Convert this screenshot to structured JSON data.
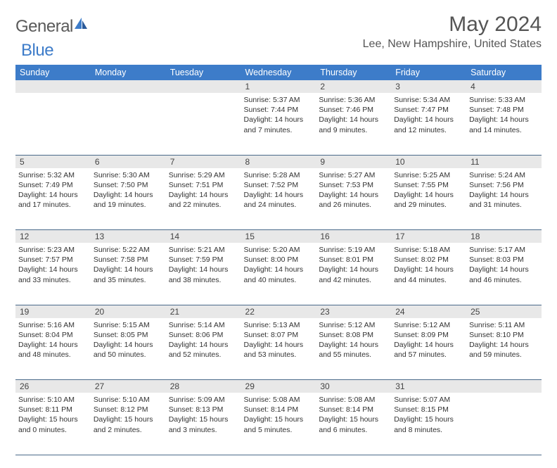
{
  "brand": {
    "part1": "General",
    "part2": "Blue"
  },
  "title": "May 2024",
  "location": "Lee, New Hampshire, United States",
  "colors": {
    "header_bg": "#3d7cc9",
    "header_text": "#ffffff",
    "daynum_bg": "#e8e8e8",
    "text": "#333333",
    "rule": "#4a6a8a",
    "logo_gray": "#5a5a5a",
    "logo_blue": "#3d7cc9"
  },
  "typography": {
    "title_fontsize": 30,
    "location_fontsize": 16,
    "dayheader_fontsize": 12.5,
    "daynum_fontsize": 12,
    "body_fontsize": 10.5
  },
  "day_headers": [
    "Sunday",
    "Monday",
    "Tuesday",
    "Wednesday",
    "Thursday",
    "Friday",
    "Saturday"
  ],
  "weeks": [
    [
      null,
      null,
      null,
      {
        "n": "1",
        "sr": "5:37 AM",
        "ss": "7:44 PM",
        "dl": "14 hours and 7 minutes."
      },
      {
        "n": "2",
        "sr": "5:36 AM",
        "ss": "7:46 PM",
        "dl": "14 hours and 9 minutes."
      },
      {
        "n": "3",
        "sr": "5:34 AM",
        "ss": "7:47 PM",
        "dl": "14 hours and 12 minutes."
      },
      {
        "n": "4",
        "sr": "5:33 AM",
        "ss": "7:48 PM",
        "dl": "14 hours and 14 minutes."
      }
    ],
    [
      {
        "n": "5",
        "sr": "5:32 AM",
        "ss": "7:49 PM",
        "dl": "14 hours and 17 minutes."
      },
      {
        "n": "6",
        "sr": "5:30 AM",
        "ss": "7:50 PM",
        "dl": "14 hours and 19 minutes."
      },
      {
        "n": "7",
        "sr": "5:29 AM",
        "ss": "7:51 PM",
        "dl": "14 hours and 22 minutes."
      },
      {
        "n": "8",
        "sr": "5:28 AM",
        "ss": "7:52 PM",
        "dl": "14 hours and 24 minutes."
      },
      {
        "n": "9",
        "sr": "5:27 AM",
        "ss": "7:53 PM",
        "dl": "14 hours and 26 minutes."
      },
      {
        "n": "10",
        "sr": "5:25 AM",
        "ss": "7:55 PM",
        "dl": "14 hours and 29 minutes."
      },
      {
        "n": "11",
        "sr": "5:24 AM",
        "ss": "7:56 PM",
        "dl": "14 hours and 31 minutes."
      }
    ],
    [
      {
        "n": "12",
        "sr": "5:23 AM",
        "ss": "7:57 PM",
        "dl": "14 hours and 33 minutes."
      },
      {
        "n": "13",
        "sr": "5:22 AM",
        "ss": "7:58 PM",
        "dl": "14 hours and 35 minutes."
      },
      {
        "n": "14",
        "sr": "5:21 AM",
        "ss": "7:59 PM",
        "dl": "14 hours and 38 minutes."
      },
      {
        "n": "15",
        "sr": "5:20 AM",
        "ss": "8:00 PM",
        "dl": "14 hours and 40 minutes."
      },
      {
        "n": "16",
        "sr": "5:19 AM",
        "ss": "8:01 PM",
        "dl": "14 hours and 42 minutes."
      },
      {
        "n": "17",
        "sr": "5:18 AM",
        "ss": "8:02 PM",
        "dl": "14 hours and 44 minutes."
      },
      {
        "n": "18",
        "sr": "5:17 AM",
        "ss": "8:03 PM",
        "dl": "14 hours and 46 minutes."
      }
    ],
    [
      {
        "n": "19",
        "sr": "5:16 AM",
        "ss": "8:04 PM",
        "dl": "14 hours and 48 minutes."
      },
      {
        "n": "20",
        "sr": "5:15 AM",
        "ss": "8:05 PM",
        "dl": "14 hours and 50 minutes."
      },
      {
        "n": "21",
        "sr": "5:14 AM",
        "ss": "8:06 PM",
        "dl": "14 hours and 52 minutes."
      },
      {
        "n": "22",
        "sr": "5:13 AM",
        "ss": "8:07 PM",
        "dl": "14 hours and 53 minutes."
      },
      {
        "n": "23",
        "sr": "5:12 AM",
        "ss": "8:08 PM",
        "dl": "14 hours and 55 minutes."
      },
      {
        "n": "24",
        "sr": "5:12 AM",
        "ss": "8:09 PM",
        "dl": "14 hours and 57 minutes."
      },
      {
        "n": "25",
        "sr": "5:11 AM",
        "ss": "8:10 PM",
        "dl": "14 hours and 59 minutes."
      }
    ],
    [
      {
        "n": "26",
        "sr": "5:10 AM",
        "ss": "8:11 PM",
        "dl": "15 hours and 0 minutes."
      },
      {
        "n": "27",
        "sr": "5:10 AM",
        "ss": "8:12 PM",
        "dl": "15 hours and 2 minutes."
      },
      {
        "n": "28",
        "sr": "5:09 AM",
        "ss": "8:13 PM",
        "dl": "15 hours and 3 minutes."
      },
      {
        "n": "29",
        "sr": "5:08 AM",
        "ss": "8:14 PM",
        "dl": "15 hours and 5 minutes."
      },
      {
        "n": "30",
        "sr": "5:08 AM",
        "ss": "8:14 PM",
        "dl": "15 hours and 6 minutes."
      },
      {
        "n": "31",
        "sr": "5:07 AM",
        "ss": "8:15 PM",
        "dl": "15 hours and 8 minutes."
      },
      null
    ]
  ],
  "labels": {
    "sunrise": "Sunrise:",
    "sunset": "Sunset:",
    "daylight": "Daylight:"
  }
}
